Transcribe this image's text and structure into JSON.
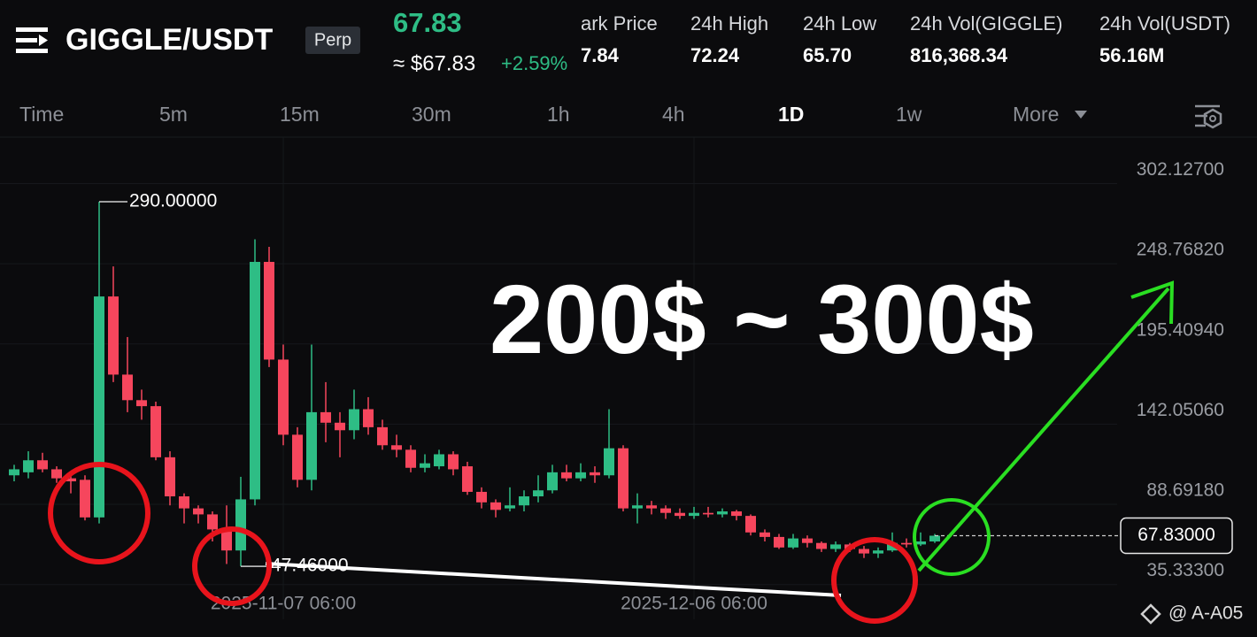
{
  "header": {
    "symbol": "GIGGLE/USDT",
    "contract": "Perp",
    "price": "67.83",
    "price_usd": "≈ $67.83",
    "change": "+2.59%",
    "stats": [
      {
        "label": "ark Price",
        "value": "7.84"
      },
      {
        "label": "24h High",
        "value": "72.24"
      },
      {
        "label": "24h Low",
        "value": "65.70"
      },
      {
        "label": "24h Vol(GIGGLE)",
        "value": "816,368.34"
      },
      {
        "label": "24h Vol(USDT)",
        "value": "56.16M"
      }
    ]
  },
  "intervals": [
    "Time",
    "5m",
    "15m",
    "30m",
    "1h",
    "4h",
    "1D",
    "1w",
    "More"
  ],
  "active_interval": "1D",
  "watermark": "@ A-A05",
  "chart_data": {
    "type": "candlestick",
    "categories": [
      null,
      null,
      null,
      null,
      null,
      null,
      null,
      null,
      null,
      null,
      null,
      null,
      null,
      null,
      null,
      null,
      null,
      null,
      null,
      "2025-11-07 06:00",
      null,
      null,
      null,
      null,
      null,
      null,
      null,
      null,
      null,
      null,
      null,
      null,
      null,
      null,
      null,
      null,
      null,
      null,
      null,
      null,
      null,
      null,
      null,
      null,
      null,
      null,
      null,
      null,
      "2025-12-06 06:00",
      null,
      null,
      null,
      null,
      null,
      null,
      null,
      null,
      null,
      null,
      null,
      null,
      null,
      null,
      null,
      null,
      null
    ],
    "open": [
      108,
      110,
      118,
      112,
      106,
      105,
      80,
      227,
      175,
      158,
      154,
      120,
      94,
      86,
      82,
      72,
      58,
      92,
      250,
      185,
      135,
      105,
      150,
      143,
      138,
      152,
      140,
      128,
      125,
      113,
      114,
      122,
      114,
      97,
      90,
      86,
      88,
      94,
      98,
      110,
      106,
      110,
      108,
      126,
      86,
      88,
      86,
      83,
      81,
      83,
      82,
      84,
      81,
      70,
      67,
      60,
      66,
      63,
      59,
      62,
      59,
      56,
      58,
      63,
      62,
      64
    ],
    "high": [
      115,
      124,
      123,
      114,
      108,
      108,
      290,
      247,
      200,
      165,
      157,
      124,
      96,
      88,
      84,
      88,
      107,
      265,
      260,
      195,
      140,
      195,
      170,
      150,
      165,
      160,
      145,
      135,
      128,
      122,
      125,
      124,
      117,
      100,
      92,
      100,
      98,
      108,
      115,
      115,
      116,
      114,
      152,
      128,
      96,
      91,
      88,
      86,
      87,
      87,
      86,
      85,
      82,
      72,
      69,
      69,
      68,
      64,
      64,
      63,
      61,
      60,
      70,
      66,
      70,
      69
    ],
    "low": [
      104,
      106,
      110,
      103,
      96,
      78,
      76,
      170,
      150,
      145,
      118,
      88,
      76,
      76,
      64,
      49,
      47.46,
      88,
      180,
      128,
      100,
      98,
      130,
      120,
      132,
      135,
      125,
      120,
      110,
      110,
      112,
      108,
      95,
      86,
      80,
      84,
      84,
      90,
      96,
      104,
      104,
      103,
      106,
      84,
      76,
      82,
      79,
      79,
      79,
      80,
      80,
      78,
      68,
      64,
      59,
      59,
      60,
      57,
      57,
      57,
      53,
      53,
      57,
      60,
      61,
      63
    ],
    "close": [
      112,
      118,
      112,
      106,
      104,
      80,
      227,
      175,
      158,
      154,
      120,
      94,
      86,
      82,
      72,
      58,
      92,
      250,
      185,
      135,
      105,
      150,
      143,
      138,
      152,
      140,
      128,
      125,
      113,
      116,
      122,
      112,
      97,
      90,
      85,
      88,
      94,
      98,
      110,
      106,
      110,
      108,
      126,
      86,
      88,
      86,
      83,
      81,
      83,
      82,
      84,
      81,
      70,
      67,
      60,
      66,
      63,
      59,
      62,
      59,
      56,
      58,
      63,
      62,
      64,
      67.83
    ],
    "up_color": "#2ebd85",
    "down_color": "#f6465d",
    "ylim": [
      12.2,
      333.0
    ],
    "yticks": [
      {
        "value": 302.127,
        "label": "302.12700"
      },
      {
        "value": 248.7682,
        "label": "248.76820"
      },
      {
        "value": 195.4094,
        "label": "195.40940"
      },
      {
        "value": 142.0506,
        "label": "142.05060"
      },
      {
        "value": 88.6918,
        "label": "88.69180"
      },
      {
        "value": 35.333,
        "label": "35.33300"
      }
    ],
    "grid": true,
    "price_line": {
      "value": 67.83,
      "label": "67.83000"
    },
    "annotations": {
      "high": "290.00000",
      "low": "47.46000",
      "target": "200$ ~ 300$"
    }
  }
}
